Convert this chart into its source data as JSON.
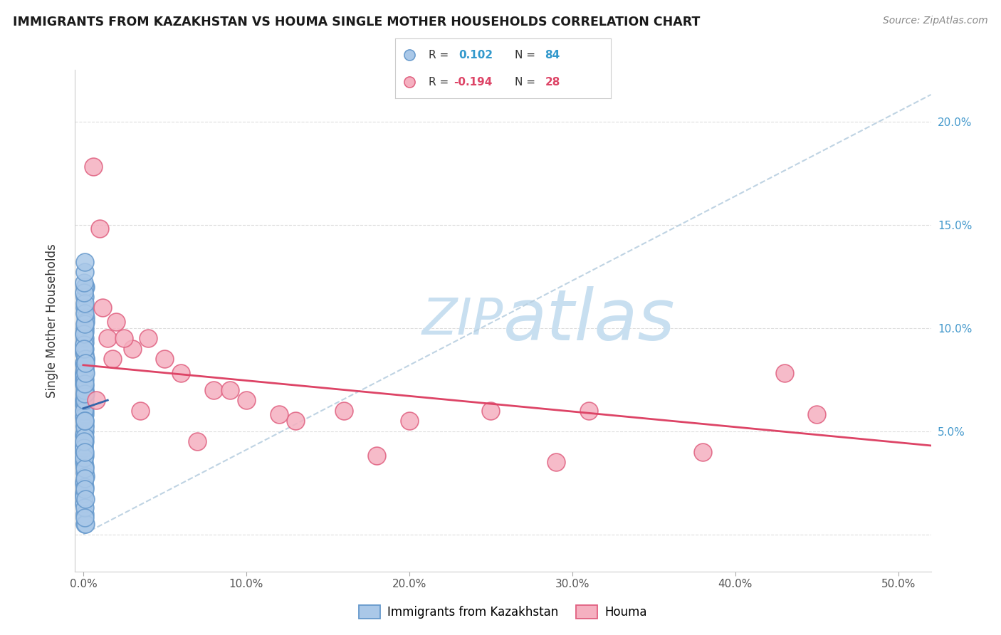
{
  "title": "IMMIGRANTS FROM KAZAKHSTAN VS HOUMA SINGLE MOTHER HOUSEHOLDS CORRELATION CHART",
  "source": "Source: ZipAtlas.com",
  "ylabel": "Single Mother Households",
  "x_ticks": [
    0.0,
    0.1,
    0.2,
    0.3,
    0.4,
    0.5
  ],
  "x_tick_labels": [
    "0.0%",
    "10.0%",
    "20.0%",
    "30.0%",
    "40.0%",
    "50.0%"
  ],
  "y_ticks": [
    0.0,
    0.05,
    0.1,
    0.15,
    0.2
  ],
  "y_tick_labels_right": [
    "",
    "5.0%",
    "10.0%",
    "15.0%",
    "20.0%"
  ],
  "xlim": [
    -0.005,
    0.52
  ],
  "ylim": [
    -0.018,
    0.225
  ],
  "blue_color": "#aac8e8",
  "blue_edge": "#6699cc",
  "pink_color": "#f5b0c0",
  "pink_edge": "#e06080",
  "trend_blue_color": "#3366aa",
  "trend_pink_color": "#dd4466",
  "trend_diag_color": "#b8cfe0",
  "watermark_zip_color": "#c8dff0",
  "watermark_atlas_color": "#c8dff0",
  "background": "#ffffff",
  "legend_label_blue": "Immigrants from Kazakhstan",
  "legend_label_pink": "Houma",
  "blue_r_val": "0.102",
  "blue_n_val": "84",
  "pink_r_val": "-0.194",
  "pink_n_val": "28",
  "blue_x": [
    0.0005,
    0.0008,
    0.001,
    0.0012,
    0.0005,
    0.0008,
    0.001,
    0.0015,
    0.0007,
    0.0009,
    0.0005,
    0.0006,
    0.0008,
    0.001,
    0.0012,
    0.0005,
    0.0007,
    0.0009,
    0.001,
    0.0006,
    0.0005,
    0.0008,
    0.001,
    0.0012,
    0.0006,
    0.0007,
    0.0009,
    0.0005,
    0.0008,
    0.001,
    0.0005,
    0.0006,
    0.0008,
    0.001,
    0.0012,
    0.0005,
    0.0007,
    0.0009,
    0.001,
    0.0006,
    0.0005,
    0.0008,
    0.001,
    0.0012,
    0.0005,
    0.0007,
    0.0009,
    0.0006,
    0.0008,
    0.001,
    0.0005,
    0.0006,
    0.0007,
    0.0009,
    0.001,
    0.0012,
    0.0005,
    0.0008,
    0.001,
    0.0006,
    0.0005,
    0.0007,
    0.0009,
    0.001,
    0.0005,
    0.0006,
    0.0008,
    0.001,
    0.0012,
    0.0005,
    0.0008,
    0.001,
    0.0007,
    0.0009,
    0.001,
    0.0012,
    0.0005,
    0.0006,
    0.0008,
    0.0007,
    0.0009,
    0.001,
    0.0012,
    0.0015
  ],
  "blue_y": [
    0.075,
    0.08,
    0.115,
    0.085,
    0.065,
    0.06,
    0.09,
    0.12,
    0.05,
    0.045,
    0.04,
    0.035,
    0.03,
    0.11,
    0.105,
    0.025,
    0.095,
    0.1,
    0.12,
    0.02,
    0.015,
    0.01,
    0.005,
    0.005,
    0.078,
    0.072,
    0.068,
    0.063,
    0.058,
    0.053,
    0.048,
    0.043,
    0.038,
    0.033,
    0.028,
    0.018,
    0.013,
    0.008,
    0.023,
    0.083,
    0.088,
    0.093,
    0.098,
    0.103,
    0.073,
    0.067,
    0.062,
    0.057,
    0.052,
    0.047,
    0.042,
    0.037,
    0.032,
    0.027,
    0.022,
    0.017,
    0.077,
    0.082,
    0.087,
    0.092,
    0.097,
    0.102,
    0.107,
    0.112,
    0.117,
    0.122,
    0.127,
    0.132,
    0.068,
    0.06,
    0.065,
    0.07,
    0.075,
    0.08,
    0.055,
    0.085,
    0.09,
    0.045,
    0.04,
    0.055,
    0.068,
    0.073,
    0.078,
    0.083
  ],
  "pink_x": [
    0.006,
    0.01,
    0.015,
    0.02,
    0.03,
    0.05,
    0.012,
    0.025,
    0.04,
    0.06,
    0.08,
    0.1,
    0.13,
    0.16,
    0.2,
    0.25,
    0.31,
    0.38,
    0.43,
    0.45,
    0.008,
    0.018,
    0.035,
    0.07,
    0.09,
    0.12,
    0.18,
    0.29
  ],
  "pink_y": [
    0.178,
    0.148,
    0.095,
    0.103,
    0.09,
    0.085,
    0.11,
    0.095,
    0.095,
    0.078,
    0.07,
    0.065,
    0.055,
    0.06,
    0.055,
    0.06,
    0.06,
    0.04,
    0.078,
    0.058,
    0.065,
    0.085,
    0.06,
    0.045,
    0.07,
    0.058,
    0.038,
    0.035
  ],
  "trend_blue_x0": 0.0,
  "trend_blue_x1": 0.015,
  "trend_blue_y0": 0.061,
  "trend_blue_y1": 0.065,
  "trend_diag_x0": 0.0,
  "trend_diag_x1": 0.52,
  "trend_diag_y0": 0.0,
  "trend_diag_y1": 0.213,
  "trend_pink_x0": 0.0,
  "trend_pink_x1": 0.52,
  "trend_pink_y0": 0.082,
  "trend_pink_y1": 0.043
}
